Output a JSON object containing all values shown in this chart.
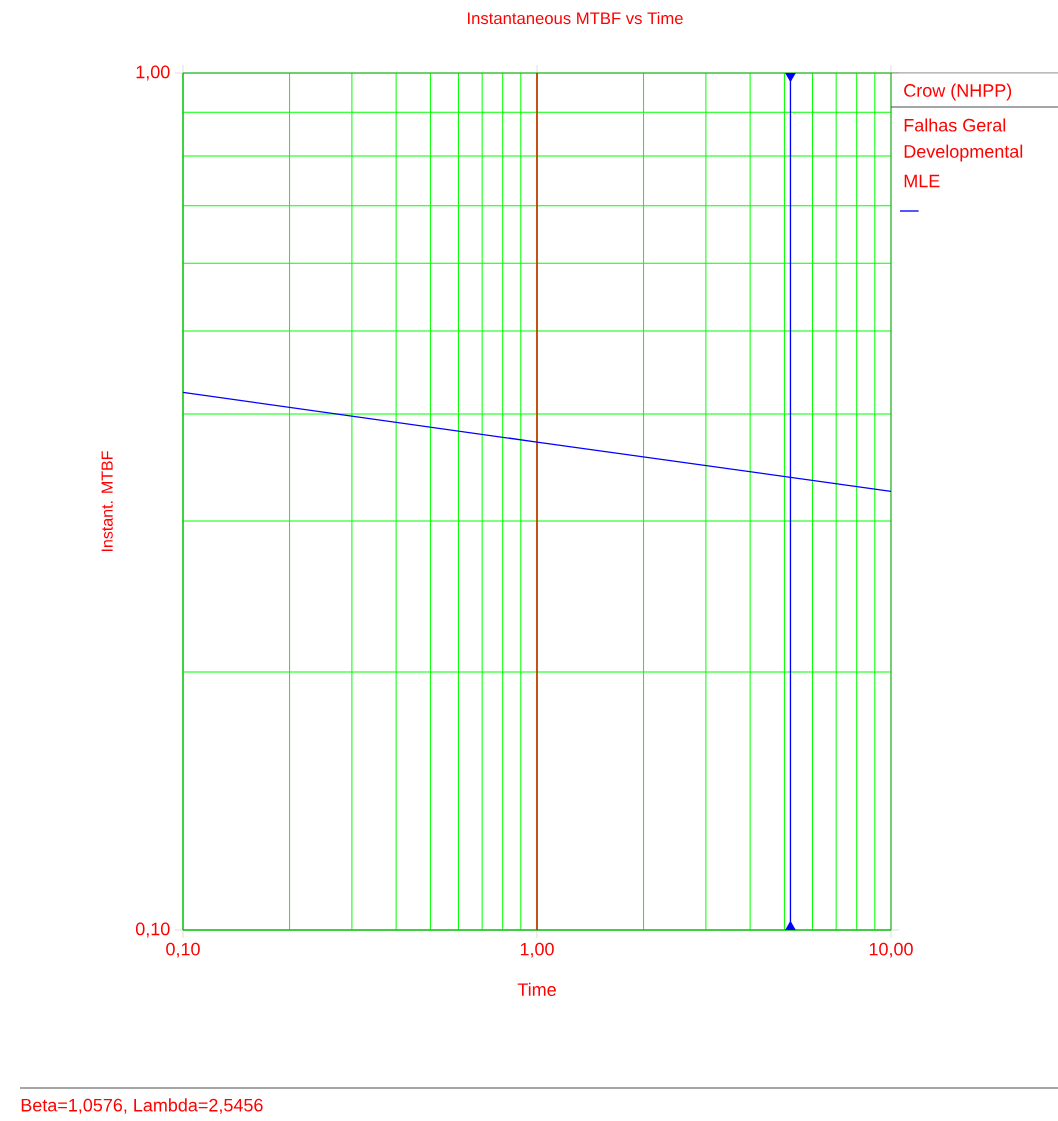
{
  "chart_data": {
    "type": "line",
    "title": "Instantaneous MTBF vs Time",
    "xlabel": "Time",
    "ylabel": "Instant. MTBF",
    "legend_title": "Crow (NHPP)",
    "annotations": [
      "Falhas Geral",
      "Developmental",
      "MLE",
      "Beta=1,0576, Lambda=2,5456"
    ],
    "log": "xy",
    "grid": true,
    "xlim": [
      0.1,
      10
    ],
    "ylim": [
      0.1,
      1
    ],
    "xticks": [
      {
        "value": 0.1,
        "label": "0,10"
      },
      {
        "value": 1,
        "label": "1,00"
      },
      {
        "value": 10,
        "label": "10,00"
      }
    ],
    "yticks": [
      {
        "value": 0.1,
        "label": "0,10"
      },
      {
        "value": 1,
        "label": "1,00"
      }
    ],
    "ref_lines": [
      {
        "axis": "x",
        "value": 1,
        "color": "#ff0000"
      },
      {
        "axis": "x",
        "value": 5.2,
        "color": "#0000ff"
      }
    ],
    "series": [
      {
        "color": "#0000ff",
        "x": [
          0.1,
          1,
          10
        ],
        "values": [
          0.424,
          0.371,
          0.325
        ]
      }
    ]
  }
}
